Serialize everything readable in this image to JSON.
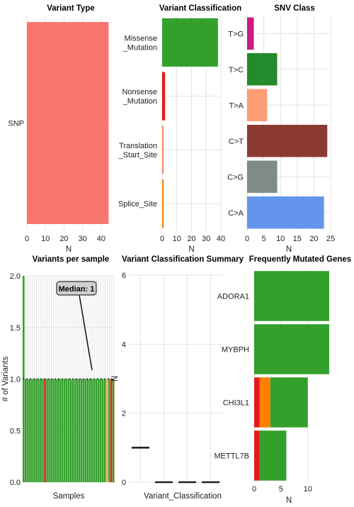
{
  "panels": {
    "variant_type": {
      "title": "Variant Type"
    },
    "variant_classification": {
      "title": "Variant Classification"
    },
    "snv_class": {
      "title": "SNV Class"
    },
    "variants_per_sample": {
      "title": "Variants per sample"
    },
    "summary": {
      "title": "Variant Classification Summary"
    },
    "genes": {
      "title": "Frequently Mutated Genes"
    }
  },
  "colors": {
    "snp": "#f8766d",
    "missense": "#33a02c",
    "nonsense": "#e31a1c",
    "translation_start": "#f48a5e",
    "splice": "#ff7f00",
    "t_g": "#cc1a7a",
    "t_c": "#238b2b",
    "t_a": "#fc9d73",
    "c_t": "#8b3a32",
    "c_g": "#7f8b85",
    "c_a": "#6495ed",
    "frame_shift": "#e8b04a"
  },
  "chart_data": [
    {
      "id": "variant_type",
      "type": "bar",
      "orientation": "horizontal",
      "title": "Variant Type",
      "categories": [
        "SNP"
      ],
      "values": [
        44
      ],
      "xlabel": "N",
      "xlim": [
        0,
        45
      ],
      "xticks": [
        0,
        10,
        20,
        30,
        40
      ]
    },
    {
      "id": "variant_classification",
      "type": "bar",
      "orientation": "horizontal",
      "title": "Variant Classification",
      "categories": [
        "Missense\n_Mutation",
        "Nonsense\n_Mutation",
        "Translation\n_Start_Site",
        "Splice_Site"
      ],
      "values": [
        38,
        2,
        1,
        1
      ],
      "xlabel": "N",
      "xlim": [
        0,
        40
      ],
      "xticks": [
        0,
        10,
        20,
        30,
        40
      ]
    },
    {
      "id": "snv_class",
      "type": "bar",
      "orientation": "horizontal",
      "title": "SNV Class",
      "categories": [
        "T>G",
        "T>C",
        "T>A",
        "C>T",
        "C>G",
        "C>A"
      ],
      "values": [
        2,
        9,
        6,
        24,
        9,
        23
      ],
      "xlabel": "N",
      "xlim": [
        0,
        25
      ],
      "xticks": [
        0,
        5,
        10,
        15,
        20,
        25
      ]
    },
    {
      "id": "variants_per_sample",
      "type": "bar",
      "title": "Variants per sample",
      "xlabel": "Samples",
      "ylabel": "# of Variants",
      "ylim": [
        0,
        2
      ],
      "yticks": [
        0.0,
        0.5,
        1.0,
        1.5,
        2.0
      ],
      "median_label": "Median: 1",
      "median": 1,
      "samples": 43,
      "first_sample_value": 2,
      "other_sample_value": 1,
      "highlight_samples": [
        {
          "index": 10,
          "class": "nonsense"
        },
        {
          "index": 39,
          "class": "frame_shift"
        },
        {
          "index": 41,
          "class": "nonsense"
        }
      ]
    },
    {
      "id": "summary",
      "type": "box",
      "title": "Variant Classification Summary",
      "xlabel": "Variant_Classification",
      "ylabel": "N",
      "ylim": [
        0,
        6
      ],
      "yticks": [
        0,
        2,
        4,
        6
      ],
      "medians": [
        1,
        0,
        0,
        0
      ]
    },
    {
      "id": "genes",
      "type": "bar",
      "orientation": "horizontal",
      "stacked": true,
      "title": "Frequently Mutated Genes",
      "categories": [
        "ADORA1",
        "MYBPH",
        "CHI3L1",
        "METTL7B"
      ],
      "xlabel": "N",
      "xlim": [
        0,
        14
      ],
      "xticks": [
        0,
        5,
        10
      ],
      "series": [
        {
          "class": "nonsense",
          "values": [
            0,
            0,
            1,
            1
          ]
        },
        {
          "class": "splice",
          "values": [
            0,
            0,
            2,
            0
          ]
        },
        {
          "class": "missense",
          "values": [
            14,
            14,
            7,
            5
          ]
        }
      ]
    }
  ]
}
